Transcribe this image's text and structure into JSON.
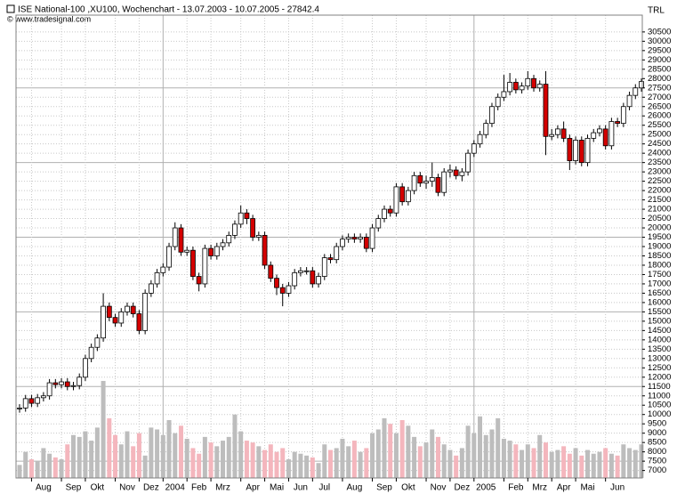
{
  "chart_data": {
    "type": "candlestick",
    "title": "ISE National-100 ,XU100, Wochenchart - 13.07.2003 - 10.07.2005 - 27842.4",
    "source": "© www.tradesignal.com",
    "currency": "TRL",
    "categories": [
      null,
      null,
      null,
      null,
      "Aug",
      null,
      null,
      null,
      null,
      "Sep",
      null,
      null,
      null,
      "Okt",
      null,
      null,
      null,
      null,
      "Nov",
      null,
      null,
      null,
      "Dez",
      null,
      null,
      null,
      "2004",
      null,
      null,
      null,
      "Feb",
      null,
      null,
      null,
      "Mrz",
      null,
      null,
      null,
      null,
      "Apr",
      null,
      null,
      null,
      "Mai",
      null,
      null,
      null,
      "Jun",
      null,
      null,
      null,
      "Jul",
      null,
      null,
      null,
      null,
      "Aug",
      null,
      null,
      null,
      null,
      "Sep",
      null,
      null,
      null,
      "Okt",
      null,
      null,
      null,
      null,
      "Nov",
      null,
      null,
      null,
      "Dez",
      null,
      null,
      null,
      "2005",
      null,
      null,
      null,
      null,
      "Feb",
      null,
      null,
      null,
      "Mrz",
      null,
      null,
      null,
      "Apr",
      null,
      null,
      null,
      "Mai",
      null,
      null,
      null,
      null,
      "Jun",
      null,
      null,
      null,
      null
    ],
    "open": [
      10300,
      10350,
      10850,
      10600,
      10900,
      11000,
      11700,
      11600,
      11750,
      11500,
      11550,
      12000,
      13000,
      13600,
      14100,
      15800,
      15200,
      14900,
      15500,
      15800,
      15400,
      14500,
      16500,
      17000,
      17600,
      17900,
      19000,
      20000,
      18700,
      18800,
      17400,
      17000,
      18900,
      18500,
      19000,
      19200,
      19600,
      20200,
      20800,
      20500,
      19500,
      19600,
      18000,
      17300,
      16800,
      16500,
      16900,
      17600,
      17700,
      17700,
      17000,
      17400,
      18400,
      18300,
      19000,
      19400,
      19500,
      19400,
      19500,
      18900,
      20000,
      20500,
      21000,
      20800,
      22200,
      21400,
      22000,
      22800,
      22400,
      22500,
      22700,
      21900,
      23000,
      23100,
      22800,
      23000,
      24000,
      24500,
      25000,
      25600,
      26500,
      27000,
      27300,
      27800,
      27400,
      27600,
      28000,
      27500,
      27700,
      24900,
      25000,
      25300,
      24800,
      23600,
      24700,
      23500,
      24800,
      25100,
      25300,
      24400,
      25700,
      25600,
      26500,
      27100,
      27500
    ],
    "high": [
      10550,
      11050,
      11050,
      11100,
      11200,
      11900,
      11900,
      11950,
      11950,
      11750,
      12200,
      13200,
      13800,
      14300,
      16500,
      16000,
      15400,
      15700,
      16000,
      16000,
      15600,
      16700,
      17200,
      17800,
      18100,
      19200,
      20300,
      20200,
      19000,
      19000,
      17600,
      19100,
      19100,
      19200,
      19400,
      19800,
      20400,
      21200,
      21000,
      20700,
      19800,
      19800,
      18200,
      17500,
      17000,
      17100,
      17800,
      17900,
      17900,
      17900,
      17600,
      18600,
      18600,
      19200,
      19600,
      19700,
      19700,
      19700,
      19700,
      20200,
      20700,
      21200,
      21200,
      22400,
      22400,
      22200,
      23000,
      23000,
      22800,
      23500,
      22900,
      23200,
      23400,
      23300,
      23200,
      24200,
      24700,
      25200,
      25800,
      26700,
      27200,
      28200,
      28300,
      28000,
      27800,
      28400,
      28200,
      27900,
      28400,
      25300,
      25500,
      25700,
      25000,
      24900,
      24900,
      25000,
      25300,
      25500,
      25500,
      25900,
      25900,
      26700,
      27300,
      27700,
      28000
    ],
    "low": [
      10100,
      10150,
      10400,
      10400,
      10700,
      10800,
      11400,
      11400,
      11300,
      11300,
      11350,
      11800,
      12800,
      13400,
      13900,
      15000,
      14700,
      14700,
      15300,
      15200,
      14300,
      14300,
      16300,
      16800,
      17400,
      17700,
      18800,
      18500,
      18500,
      17200,
      16600,
      16800,
      18300,
      18300,
      18800,
      19000,
      19400,
      20000,
      20200,
      19300,
      19300,
      17800,
      17100,
      16400,
      15800,
      16300,
      16700,
      17400,
      17500,
      16800,
      16800,
      17200,
      18100,
      18100,
      18800,
      19200,
      19200,
      19200,
      18700,
      18700,
      19800,
      20300,
      20600,
      20600,
      21200,
      21200,
      21800,
      22200,
      22100,
      22200,
      21700,
      21700,
      22700,
      22600,
      22500,
      22800,
      23800,
      24300,
      24800,
      25400,
      26300,
      26800,
      27100,
      27200,
      27200,
      27400,
      27300,
      27300,
      23900,
      24700,
      24800,
      24600,
      23100,
      23400,
      23300,
      23300,
      24600,
      24900,
      24200,
      24200,
      25400,
      25400,
      26300,
      26900,
      27300
    ],
    "close": [
      10350,
      10850,
      10600,
      10900,
      11000,
      11700,
      11600,
      11750,
      11500,
      11550,
      12000,
      13000,
      13600,
      14100,
      15800,
      15200,
      14900,
      15500,
      15800,
      15400,
      14500,
      16500,
      17000,
      17600,
      17900,
      19000,
      20000,
      18700,
      18800,
      17400,
      17000,
      18900,
      18500,
      19000,
      19200,
      19600,
      20200,
      20800,
      20500,
      19500,
      19600,
      18000,
      17300,
      16800,
      16500,
      16900,
      17600,
      17700,
      17700,
      17000,
      17400,
      18400,
      18300,
      19000,
      19400,
      19500,
      19400,
      19500,
      18900,
      20000,
      20500,
      21000,
      20800,
      22200,
      21400,
      22000,
      22800,
      22400,
      22500,
      22700,
      21900,
      23000,
      23100,
      22800,
      23000,
      24000,
      24500,
      25000,
      25600,
      26500,
      27000,
      27300,
      27800,
      27400,
      27600,
      28000,
      27500,
      27700,
      24900,
      25000,
      25300,
      24800,
      23600,
      24700,
      23500,
      24800,
      25100,
      25300,
      24400,
      25700,
      25600,
      26500,
      27100,
      27500,
      27842
    ],
    "volume": [
      7300,
      8000,
      7600,
      7500,
      8200,
      7900,
      7700,
      7600,
      8400,
      8900,
      8800,
      9100,
      8600,
      9300,
      11800,
      9800,
      8900,
      8400,
      9100,
      8300,
      9000,
      7800,
      9300,
      9200,
      8900,
      9700,
      9000,
      9400,
      8700,
      8200,
      7900,
      8800,
      8500,
      8300,
      8600,
      8800,
      10000,
      9100,
      8600,
      8500,
      8300,
      8100,
      8400,
      8000,
      8200,
      7600,
      8000,
      7900,
      7800,
      7700,
      7400,
      8400,
      8100,
      8200,
      8700,
      8300,
      8600,
      8000,
      8200,
      9000,
      9200,
      9800,
      9500,
      9000,
      9700,
      9400,
      8800,
      8300,
      8500,
      9200,
      8800,
      8400,
      8100,
      7800,
      8200,
      9400,
      9000,
      9900,
      8900,
      9200,
      9800,
      8700,
      8600,
      8400,
      8100,
      8400,
      8200,
      8900,
      8500,
      8000,
      8100,
      8300,
      7900,
      8200,
      7800,
      8100,
      7900,
      8000,
      8200,
      7900,
      7800,
      8400,
      8200,
      8100,
      8400
    ],
    "up_color": "#ffffff",
    "down_color": "#d40000",
    "up_volume_color": "#bdbdbd",
    "down_volume_color": "#f4b6bd",
    "ylim": [
      6600,
      31400
    ],
    "yticks": [
      7000,
      7500,
      8000,
      8500,
      9000,
      9500,
      10000,
      10500,
      11000,
      11500,
      12000,
      12500,
      13000,
      13500,
      14000,
      14500,
      15000,
      15500,
      16000,
      16500,
      17000,
      17500,
      18000,
      18500,
      19000,
      19500,
      20000,
      20500,
      21000,
      21500,
      22000,
      22500,
      23000,
      23500,
      24000,
      24500,
      25000,
      25500,
      26000,
      26500,
      27000,
      27500,
      28000,
      28500,
      29000,
      29500,
      30000,
      30500
    ],
    "grid": true
  }
}
